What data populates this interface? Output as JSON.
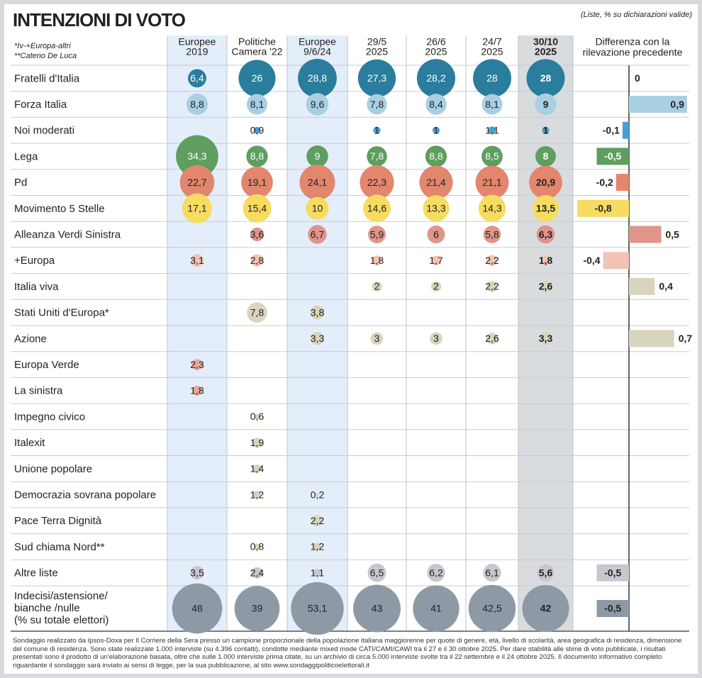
{
  "chart_data": {
    "type": "bubble-table",
    "title": "INTENZIONI DI VOTO",
    "subtitle": "(Liste, % su dichiarazioni valide)",
    "notes": [
      "*Iv-+Europa-altri",
      "**Cateno De Luca"
    ],
    "columns": [
      [
        "Europee",
        "2019"
      ],
      [
        "Politiche",
        "Camera '22"
      ],
      [
        "Europee",
        "9/6/24"
      ],
      [
        "29/5",
        "2025"
      ],
      [
        "26/6",
        "2025"
      ],
      [
        "24/7",
        "2025"
      ],
      [
        "30/10",
        "2025"
      ]
    ],
    "column_shading": [
      "#e3eefa",
      null,
      "#e3eefa",
      null,
      null,
      null,
      "#d9dcdf"
    ],
    "diff_title": [
      "Differenza con la",
      "rilevazione precedente"
    ],
    "rows": [
      {
        "name": "Fratelli d'Italia",
        "color": "#2a7d9c",
        "values": [
          6.4,
          26,
          28.8,
          27.3,
          28.2,
          28,
          28
        ],
        "value_labels": [
          "6,4",
          "26",
          "28,8",
          "27,3",
          "28,2",
          "28",
          "28"
        ],
        "diff": 0,
        "diff_label": "0"
      },
      {
        "name": "Forza Italia",
        "color": "#a9cfe3",
        "values": [
          8.8,
          8.1,
          9.6,
          7.8,
          8.4,
          8.1,
          9
        ],
        "value_labels": [
          "8,8",
          "8,1",
          "9,6",
          "7,8",
          "8,4",
          "8,1",
          "9"
        ],
        "diff": 0.9,
        "diff_label": "0,9"
      },
      {
        "name": "Noi moderati",
        "color": "#4a9fd0",
        "values": [
          null,
          0.9,
          null,
          1,
          1,
          1.1,
          1
        ],
        "value_labels": [
          null,
          "0,9",
          null,
          "1",
          "1",
          "1,1",
          "1"
        ],
        "diff": -0.1,
        "diff_label": "-0,1"
      },
      {
        "name": "Lega",
        "color": "#5e9e5e",
        "values": [
          34.3,
          8.8,
          9,
          7.8,
          8.8,
          8.5,
          8
        ],
        "value_labels": [
          "34,3",
          "8,8",
          "9",
          "7,8",
          "8,8",
          "8,5",
          "8"
        ],
        "diff": -0.5,
        "diff_label": "-0,5"
      },
      {
        "name": "Pd",
        "color": "#e2866e",
        "values": [
          22.7,
          19.1,
          24.1,
          22.3,
          21.4,
          21.1,
          20.9
        ],
        "value_labels": [
          "22,7",
          "19,1",
          "24,1",
          "22,3",
          "21,4",
          "21,1",
          "20,9"
        ],
        "diff": -0.2,
        "diff_label": "-0,2"
      },
      {
        "name": "Movimento 5 Stelle",
        "color": "#f7dc62",
        "values": [
          17.1,
          15.4,
          10,
          14.6,
          13.3,
          14.3,
          13.5
        ],
        "value_labels": [
          "17,1",
          "15,4",
          "10",
          "14,6",
          "13,3",
          "14,3",
          "13,5"
        ],
        "diff": -0.8,
        "diff_label": "-0,8"
      },
      {
        "name": "Alleanza Verdi Sinistra",
        "color": "#df958a",
        "values": [
          null,
          3.6,
          6.7,
          5.9,
          6,
          5.8,
          6.3
        ],
        "value_labels": [
          null,
          "3,6",
          "6,7",
          "5,9",
          "6",
          "5,8",
          "6,3"
        ],
        "diff": 0.5,
        "diff_label": "0,5"
      },
      {
        "name": "+Europa",
        "color": "#f2c2b5",
        "values": [
          3.1,
          2.8,
          null,
          1.8,
          1.7,
          2.2,
          1.8
        ],
        "value_labels": [
          "3,1",
          "2,8",
          null,
          "1,8",
          "1,7",
          "2,2",
          "1,8"
        ],
        "diff": -0.4,
        "diff_label": "-0,4"
      },
      {
        "name": "Italia viva",
        "color": "#d9d4bd",
        "values": [
          null,
          null,
          null,
          2,
          2,
          2.2,
          2.6
        ],
        "value_labels": [
          null,
          null,
          null,
          "2",
          "2",
          "2,2",
          "2,6"
        ],
        "diff": 0.4,
        "diff_label": "0,4"
      },
      {
        "name": "Stati Uniti d'Europa*",
        "color": "#d9d4bd",
        "values": [
          null,
          7.8,
          3.8,
          null,
          null,
          null,
          null
        ],
        "value_labels": [
          null,
          "7,8",
          "3,8",
          null,
          null,
          null,
          null
        ],
        "diff": null,
        "diff_label": null
      },
      {
        "name": "Azione",
        "color": "#d9d4bd",
        "values": [
          null,
          null,
          3.3,
          3,
          3,
          2.6,
          3.3
        ],
        "value_labels": [
          null,
          null,
          "3,3",
          "3",
          "3",
          "2,6",
          "3,3"
        ],
        "diff": 0.7,
        "diff_label": "0,7"
      },
      {
        "name": "Europa Verde",
        "color": "#e8a99a",
        "values": [
          2.3,
          null,
          null,
          null,
          null,
          null,
          null
        ],
        "value_labels": [
          "2,3",
          null,
          null,
          null,
          null,
          null,
          null
        ],
        "diff": null,
        "diff_label": null
      },
      {
        "name": "La sinistra",
        "color": "#e8a99a",
        "values": [
          1.8,
          null,
          null,
          null,
          null,
          null,
          null
        ],
        "value_labels": [
          "1,8",
          null,
          null,
          null,
          null,
          null,
          null
        ],
        "diff": null,
        "diff_label": null
      },
      {
        "name": "Impegno civico",
        "color": "#d9d4bd",
        "values": [
          null,
          0.6,
          null,
          null,
          null,
          null,
          null
        ],
        "value_labels": [
          null,
          "0,6",
          null,
          null,
          null,
          null,
          null
        ],
        "diff": null,
        "diff_label": null
      },
      {
        "name": "Italexit",
        "color": "#d9d4bd",
        "values": [
          null,
          1.9,
          null,
          null,
          null,
          null,
          null
        ],
        "value_labels": [
          null,
          "1,9",
          null,
          null,
          null,
          null,
          null
        ],
        "diff": null,
        "diff_label": null
      },
      {
        "name": "Unione popolare",
        "color": "#d9d4bd",
        "values": [
          null,
          1.4,
          null,
          null,
          null,
          null,
          null
        ],
        "value_labels": [
          null,
          "1,4",
          null,
          null,
          null,
          null,
          null
        ],
        "diff": null,
        "diff_label": null
      },
      {
        "name": "Democrazia sovrana popolare",
        "color": "#d9d4bd",
        "values": [
          null,
          1.2,
          0.2,
          null,
          null,
          null,
          null
        ],
        "value_labels": [
          null,
          "1,2",
          "0,2",
          null,
          null,
          null,
          null
        ],
        "diff": null,
        "diff_label": null
      },
      {
        "name": "Pace Terra Dignità",
        "color": "#d9d4bd",
        "values": [
          null,
          null,
          2.2,
          null,
          null,
          null,
          null
        ],
        "value_labels": [
          null,
          null,
          "2,2",
          null,
          null,
          null,
          null
        ],
        "diff": null,
        "diff_label": null
      },
      {
        "name": "Sud chiama Nord**",
        "color": "#d9d4bd",
        "values": [
          null,
          0.8,
          1.2,
          null,
          null,
          null,
          null
        ],
        "value_labels": [
          null,
          "0,8",
          "1,2",
          null,
          null,
          null,
          null
        ],
        "diff": null,
        "diff_label": null
      },
      {
        "name": "Altre liste",
        "color": "#cbc5d0",
        "values": [
          3.5,
          2.4,
          1.1,
          6.5,
          6.2,
          6.1,
          5.6
        ],
        "value_labels": [
          "3,5",
          "2,4",
          "1,1",
          "6,5",
          "6,2",
          "6,1",
          "5,6"
        ],
        "diff": -0.5,
        "diff_label": "-0,5"
      },
      {
        "name": [
          "Indecisi/astensione/",
          "bianche /nulle",
          "(% su totale elettori)"
        ],
        "color": "#8d9aa6",
        "values": [
          48,
          39,
          53.1,
          43,
          41,
          42.5,
          42
        ],
        "value_labels": [
          "48",
          "39",
          "53,1",
          "43",
          "41",
          "42,5",
          "42"
        ],
        "diff": -0.5,
        "diff_label": "-0,5"
      }
    ],
    "footer": "Sondaggio realizzato da Ipsos-Doxa per Il Corriere della Sera presso un campione proporzionale della popolazione italiana maggiorenne per quote di genere, età, livello di scolarità, area geografica di residenza, dimensione del comune di residenza. Sono state realizzate 1.000 interviste (su 4.396 contatti), condotte mediante mixed mode CATI/CAMI/CAWI tra il 27 e il 30 ottobre 2025. Per dare stabilità alle stime di voto pubblicate, i risultati presentati sono il prodotto di un'elaborazione basata, oltre che sulle 1.000 interviste prima citate, su un archivio di circa 5.000 interviste svolte tra il 22 settembre e il 24 ottobre 2025. Il documento informativo completo riguardante il sondaggio sarà inviato ai sensi di legge, per la sua pubblicazione, al sito www.sondaggipoliticoelettorali.it"
  }
}
